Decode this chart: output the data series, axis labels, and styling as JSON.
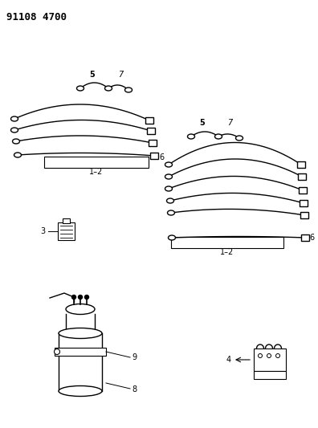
{
  "title": "91108 4700",
  "bg_color": "#ffffff",
  "line_color": "#000000",
  "fig_width": 3.96,
  "fig_height": 5.33,
  "dpi": 100,
  "labels": {
    "part1_2_left": "1–2",
    "part1_2_right": "1–2",
    "part3": "3",
    "part4": "4",
    "part5_left": "5",
    "part5_right": "5",
    "part6_left": "6",
    "part6_right": "6",
    "part7_left": "7",
    "part7_right": "7",
    "part8": "8",
    "part9": "9"
  }
}
